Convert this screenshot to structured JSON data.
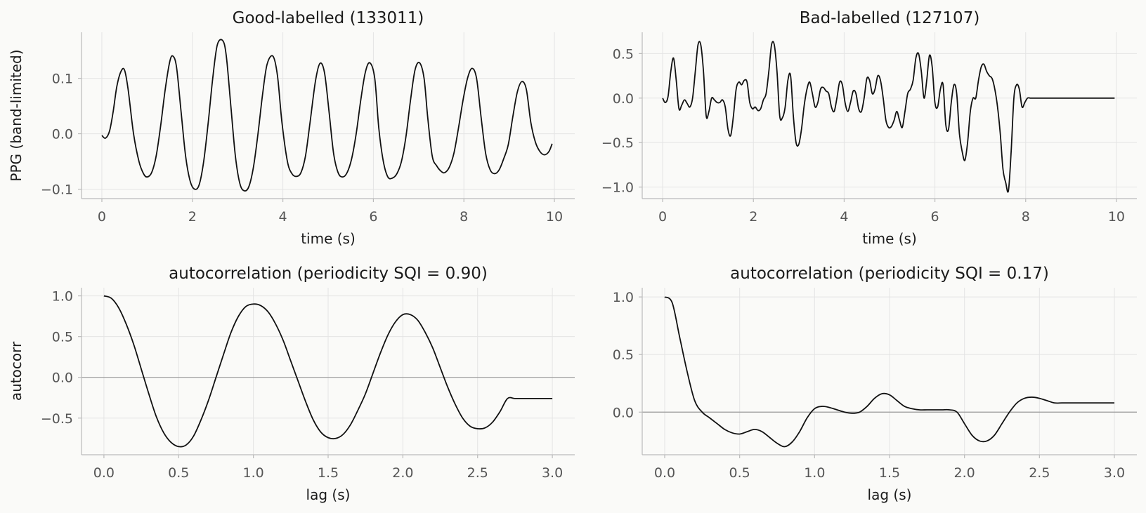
{
  "figure": {
    "background": "#fafaf8",
    "line_color": "#111111",
    "grid_color": "#e4e4e4",
    "axis_color": "#bbbbbb",
    "tick_label_color": "#555555",
    "zero_line_color": "#999999"
  },
  "chart_data": [
    {
      "type": "line",
      "title": "Good-labelled  (133011)",
      "xlabel": "time (s)",
      "ylabel": "PPG (band-limited)",
      "xlim": [
        -0.45,
        10.45
      ],
      "ylim": [
        -0.117,
        0.183
      ],
      "xticks": [
        0,
        2,
        4,
        6,
        8,
        10
      ],
      "xtick_labels": [
        "0",
        "2",
        "4",
        "6",
        "8",
        "10"
      ],
      "yticks": [
        -0.1,
        0.0,
        0.1
      ],
      "ytick_labels": [
        "−0.1",
        "0.0",
        "0.1"
      ],
      "grid": true,
      "zero_line": false,
      "series": [
        {
          "x": [
            0,
            0.08,
            0.17,
            0.25,
            0.33,
            0.42,
            0.5,
            0.58,
            0.7,
            0.82,
            0.92,
            1.0,
            1.1,
            1.2,
            1.3,
            1.4,
            1.5,
            1.57,
            1.65,
            1.75,
            1.85,
            1.95,
            2.05,
            2.15,
            2.25,
            2.35,
            2.45,
            2.55,
            2.67,
            2.75,
            2.85,
            2.95,
            3.05,
            3.15,
            3.25,
            3.35,
            3.45,
            3.55,
            3.65,
            3.78,
            3.88,
            3.98,
            4.1,
            4.2,
            4.3,
            4.4,
            4.5,
            4.6,
            4.72,
            4.82,
            4.92,
            5.02,
            5.12,
            5.22,
            5.32,
            5.42,
            5.52,
            5.62,
            5.72,
            5.82,
            5.92,
            6.03,
            6.12,
            6.22,
            6.32,
            6.42,
            6.52,
            6.62,
            6.72,
            6.82,
            6.92,
            7.02,
            7.12,
            7.2,
            7.3,
            7.4,
            7.5,
            7.58,
            7.68,
            7.78,
            7.88,
            7.98,
            8.08,
            8.18,
            8.28,
            8.38,
            8.48,
            8.58,
            8.68,
            8.78,
            8.88,
            8.98,
            9.08,
            9.18,
            9.28,
            9.38,
            9.48,
            9.58,
            9.68,
            9.78,
            9.88,
            9.95
          ],
          "y": [
            -0.003,
            -0.008,
            0.005,
            0.04,
            0.085,
            0.112,
            0.115,
            0.08,
            0.0,
            -0.05,
            -0.072,
            -0.078,
            -0.07,
            -0.04,
            0.015,
            0.08,
            0.13,
            0.14,
            0.12,
            0.04,
            -0.04,
            -0.085,
            -0.1,
            -0.092,
            -0.05,
            0.02,
            0.1,
            0.16,
            0.168,
            0.14,
            0.05,
            -0.04,
            -0.09,
            -0.103,
            -0.095,
            -0.06,
            0.0,
            0.07,
            0.125,
            0.14,
            0.105,
            0.02,
            -0.05,
            -0.072,
            -0.077,
            -0.07,
            -0.04,
            0.02,
            0.095,
            0.127,
            0.11,
            0.04,
            -0.035,
            -0.07,
            -0.078,
            -0.07,
            -0.045,
            0.0,
            0.06,
            0.11,
            0.128,
            0.1,
            0.01,
            -0.05,
            -0.078,
            -0.08,
            -0.072,
            -0.05,
            -0.005,
            0.06,
            0.115,
            0.128,
            0.1,
            0.03,
            -0.04,
            -0.058,
            -0.068,
            -0.07,
            -0.06,
            -0.035,
            0.01,
            0.06,
            0.1,
            0.118,
            0.1,
            0.03,
            -0.035,
            -0.065,
            -0.072,
            -0.065,
            -0.045,
            -0.02,
            0.03,
            0.075,
            0.094,
            0.08,
            0.02,
            -0.015,
            -0.032,
            -0.038,
            -0.032,
            -0.018
          ]
        }
      ]
    },
    {
      "type": "line",
      "title": "Bad-labelled  (127107)",
      "xlabel": "time (s)",
      "ylabel": "",
      "xlim": [
        -0.45,
        10.45
      ],
      "ylim": [
        -1.13,
        0.74
      ],
      "xticks": [
        0,
        2,
        4,
        6,
        8,
        10
      ],
      "xtick_labels": [
        "0",
        "2",
        "4",
        "6",
        "8",
        "10"
      ],
      "yticks": [
        -1.0,
        -0.5,
        0.0,
        0.5
      ],
      "ytick_labels": [
        "−1.0",
        "−0.5",
        "0.0",
        "0.5"
      ],
      "grid": true,
      "zero_line": false,
      "series": [
        {
          "x": [
            0,
            0.06,
            0.12,
            0.18,
            0.24,
            0.3,
            0.36,
            0.42,
            0.48,
            0.54,
            0.6,
            0.66,
            0.72,
            0.78,
            0.84,
            0.9,
            0.96,
            1.02,
            1.08,
            1.14,
            1.2,
            1.26,
            1.32,
            1.38,
            1.44,
            1.5,
            1.56,
            1.62,
            1.68,
            1.74,
            1.8,
            1.86,
            1.92,
            1.98,
            2.04,
            2.1,
            2.16,
            2.22,
            2.28,
            2.34,
            2.4,
            2.46,
            2.52,
            2.58,
            2.64,
            2.7,
            2.76,
            2.82,
            2.88,
            2.94,
            3.0,
            3.06,
            3.12,
            3.18,
            3.24,
            3.3,
            3.36,
            3.42,
            3.48,
            3.54,
            3.6,
            3.66,
            3.72,
            3.78,
            3.84,
            3.9,
            3.96,
            4.02,
            4.08,
            4.14,
            4.2,
            4.26,
            4.32,
            4.38,
            4.44,
            4.5,
            4.56,
            4.62,
            4.68,
            4.74,
            4.8,
            4.86,
            4.92,
            4.98,
            5.04,
            5.1,
            5.16,
            5.22,
            5.28,
            5.34,
            5.4,
            5.46,
            5.52,
            5.58,
            5.64,
            5.7,
            5.76,
            5.82,
            5.88,
            5.94,
            6.0,
            6.06,
            6.12,
            6.18,
            6.24,
            6.3,
            6.36,
            6.42,
            6.48,
            6.54,
            6.6,
            6.66,
            6.72,
            6.78,
            6.84,
            6.9,
            6.96,
            7.02,
            7.08,
            7.14,
            7.2,
            7.26,
            7.32,
            7.38,
            7.44,
            7.5,
            7.56,
            7.62,
            7.68,
            7.74,
            7.8,
            7.86,
            7.92,
            7.98,
            8.04,
            8.1,
            8.16,
            8.22,
            8.28,
            8.34,
            8.4,
            8.46,
            8.52,
            8.58,
            8.64,
            8.7,
            8.76,
            8.82,
            8.88,
            8.94,
            9.0,
            9.06,
            9.12,
            9.18,
            9.24,
            9.3,
            9.36,
            9.42,
            9.48,
            9.54,
            9.6,
            9.66,
            9.72,
            9.78,
            9.84,
            9.9,
            9.96
          ],
          "y": [
            0.0,
            -0.05,
            0.02,
            0.3,
            0.45,
            0.2,
            -0.12,
            -0.08,
            -0.02,
            -0.06,
            -0.1,
            0.0,
            0.3,
            0.6,
            0.6,
            0.3,
            -0.2,
            -0.15,
            0.0,
            -0.02,
            -0.05,
            -0.05,
            -0.02,
            -0.1,
            -0.35,
            -0.42,
            -0.2,
            0.1,
            0.18,
            0.15,
            0.2,
            0.18,
            -0.05,
            -0.12,
            -0.1,
            -0.14,
            -0.12,
            -0.02,
            0.05,
            0.3,
            0.6,
            0.6,
            0.3,
            -0.2,
            -0.22,
            -0.1,
            0.2,
            0.25,
            -0.2,
            -0.5,
            -0.52,
            -0.35,
            -0.08,
            0.1,
            0.18,
            0.05,
            -0.1,
            -0.05,
            0.1,
            0.12,
            0.08,
            0.05,
            -0.1,
            -0.15,
            0.0,
            0.18,
            0.15,
            -0.05,
            -0.15,
            -0.05,
            0.08,
            0.05,
            -0.12,
            -0.15,
            0.0,
            0.22,
            0.2,
            0.05,
            0.1,
            0.25,
            0.2,
            0.0,
            -0.25,
            -0.33,
            -0.32,
            -0.25,
            -0.15,
            -0.25,
            -0.33,
            -0.15,
            0.05,
            0.1,
            0.2,
            0.45,
            0.5,
            0.3,
            0.0,
            0.2,
            0.48,
            0.35,
            -0.05,
            -0.1,
            0.1,
            0.15,
            -0.3,
            -0.35,
            -0.05,
            0.15,
            0.05,
            -0.4,
            -0.6,
            -0.7,
            -0.5,
            -0.15,
            0.0,
            0.0,
            0.2,
            0.35,
            0.38,
            0.3,
            0.25,
            0.22,
            0.1,
            -0.1,
            -0.4,
            -0.8,
            -0.95,
            -1.04,
            -0.6,
            0.0,
            0.15,
            0.1,
            -0.1,
            -0.05,
            0.0,
            0.0,
            0.0,
            0.0,
            0.0,
            0.0,
            0.0,
            0.0,
            0.0,
            0.0,
            0.0,
            0.0,
            0.0,
            0.0,
            0.0,
            0.0,
            0.0,
            0.0,
            0.0,
            0.0,
            0.0,
            0.0,
            0.0,
            0.0,
            0.0,
            0.0,
            0.0,
            0.0,
            0.0,
            0.0,
            0.0,
            0.0,
            0.0
          ]
        }
      ]
    },
    {
      "type": "line",
      "title": "autocorrelation  (periodicity SQI = 0.90)",
      "xlabel": "lag (s)",
      "ylabel": "autocorr",
      "xlim": [
        -0.15,
        3.15
      ],
      "ylim": [
        -0.95,
        1.1
      ],
      "xticks": [
        0.0,
        0.5,
        1.0,
        1.5,
        2.0,
        2.5,
        3.0
      ],
      "xtick_labels": [
        "0.0",
        "0.5",
        "1.0",
        "1.5",
        "2.0",
        "2.5",
        "3.0"
      ],
      "yticks": [
        -0.5,
        0.0,
        0.5,
        1.0
      ],
      "ytick_labels": [
        "−0.5",
        "0.0",
        "0.5",
        "1.0"
      ],
      "grid": true,
      "zero_line": true,
      "series": [
        {
          "x": [
            0.0,
            0.05,
            0.1,
            0.15,
            0.2,
            0.25,
            0.3,
            0.35,
            0.4,
            0.45,
            0.5,
            0.55,
            0.6,
            0.65,
            0.7,
            0.75,
            0.8,
            0.85,
            0.9,
            0.95,
            1.0,
            1.05,
            1.1,
            1.15,
            1.2,
            1.25,
            1.3,
            1.35,
            1.4,
            1.45,
            1.5,
            1.55,
            1.6,
            1.65,
            1.7,
            1.75,
            1.8,
            1.85,
            1.9,
            1.95,
            2.0,
            2.05,
            2.1,
            2.15,
            2.2,
            2.25,
            2.3,
            2.35,
            2.4,
            2.45,
            2.5,
            2.55,
            2.6,
            2.65,
            2.7,
            2.75,
            2.8,
            2.85,
            2.9,
            2.95,
            3.0
          ],
          "y": [
            1.0,
            0.97,
            0.85,
            0.65,
            0.4,
            0.1,
            -0.2,
            -0.48,
            -0.68,
            -0.8,
            -0.85,
            -0.83,
            -0.72,
            -0.52,
            -0.28,
            0.0,
            0.28,
            0.55,
            0.75,
            0.87,
            0.9,
            0.88,
            0.8,
            0.65,
            0.45,
            0.2,
            -0.05,
            -0.3,
            -0.52,
            -0.67,
            -0.74,
            -0.75,
            -0.7,
            -0.58,
            -0.4,
            -0.2,
            0.05,
            0.3,
            0.52,
            0.68,
            0.77,
            0.77,
            0.7,
            0.55,
            0.36,
            0.12,
            -0.12,
            -0.33,
            -0.5,
            -0.6,
            -0.63,
            -0.62,
            -0.55,
            -0.42,
            -0.26,
            -0.26,
            -0.26,
            -0.26,
            -0.26,
            -0.26,
            -0.26
          ]
        }
      ]
    },
    {
      "type": "line",
      "title": "autocorrelation  (periodicity SQI = 0.17)",
      "xlabel": "lag (s)",
      "ylabel": "",
      "xlim": [
        -0.15,
        3.15
      ],
      "ylim": [
        -0.37,
        1.08
      ],
      "xticks": [
        0.0,
        0.5,
        1.0,
        1.5,
        2.0,
        2.5,
        3.0
      ],
      "xtick_labels": [
        "0.0",
        "0.5",
        "1.0",
        "1.5",
        "2.0",
        "2.5",
        "3.0"
      ],
      "yticks": [
        0.0,
        0.5,
        1.0
      ],
      "ytick_labels": [
        "0.0",
        "0.5",
        "1.0"
      ],
      "grid": true,
      "zero_line": true,
      "series": [
        {
          "x": [
            0.0,
            0.05,
            0.1,
            0.15,
            0.2,
            0.25,
            0.3,
            0.35,
            0.4,
            0.45,
            0.5,
            0.55,
            0.6,
            0.65,
            0.7,
            0.75,
            0.8,
            0.85,
            0.9,
            0.95,
            1.0,
            1.05,
            1.1,
            1.15,
            1.2,
            1.25,
            1.3,
            1.35,
            1.4,
            1.45,
            1.5,
            1.55,
            1.6,
            1.65,
            1.7,
            1.75,
            1.8,
            1.85,
            1.9,
            1.95,
            2.0,
            2.05,
            2.1,
            2.15,
            2.2,
            2.25,
            2.3,
            2.35,
            2.4,
            2.45,
            2.5,
            2.55,
            2.6,
            2.65,
            2.7,
            2.75,
            2.8,
            2.85,
            2.9,
            2.95,
            3.0
          ],
          "y": [
            1.0,
            0.95,
            0.65,
            0.35,
            0.1,
            0.0,
            -0.05,
            -0.1,
            -0.15,
            -0.18,
            -0.19,
            -0.17,
            -0.15,
            -0.17,
            -0.22,
            -0.27,
            -0.3,
            -0.26,
            -0.17,
            -0.05,
            0.03,
            0.05,
            0.04,
            0.02,
            0.0,
            -0.01,
            0.0,
            0.05,
            0.12,
            0.16,
            0.15,
            0.1,
            0.05,
            0.03,
            0.02,
            0.02,
            0.02,
            0.02,
            0.02,
            0.0,
            -0.1,
            -0.2,
            -0.25,
            -0.25,
            -0.2,
            -0.1,
            0.0,
            0.08,
            0.12,
            0.13,
            0.12,
            0.1,
            0.08,
            0.08,
            0.08,
            0.08,
            0.08,
            0.08,
            0.08,
            0.08,
            0.08
          ]
        }
      ]
    }
  ]
}
